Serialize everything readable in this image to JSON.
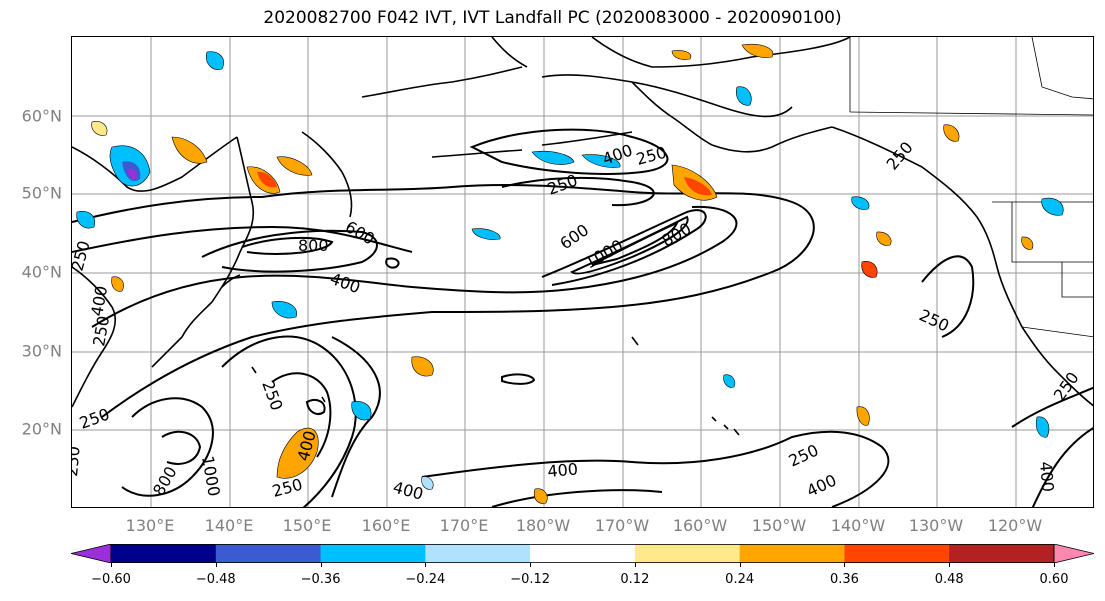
{
  "title": "2020082700 F042 IVT, IVT Landfall PC (2020083000 - 2020090100)",
  "lat_labels": [
    "60°N",
    "50°N",
    "40°N",
    "30°N",
    "20°N"
  ],
  "lon_labels": [
    "130°E",
    "140°E",
    "150°E",
    "160°E",
    "170°E",
    "180°W",
    "170°W",
    "160°W",
    "150°W",
    "140°W",
    "130°W",
    "120°W"
  ],
  "contour_labels": [
    {
      "text": "400"
    },
    {
      "text": "250"
    },
    {
      "text": "250"
    },
    {
      "text": "600"
    },
    {
      "text": "800"
    },
    {
      "text": "600"
    },
    {
      "text": "1000"
    },
    {
      "text": "800"
    },
    {
      "text": "400"
    },
    {
      "text": "250"
    },
    {
      "text": "250"
    },
    {
      "text": "250"
    },
    {
      "text": "400"
    },
    {
      "text": "250"
    },
    {
      "text": "250"
    },
    {
      "text": "250"
    },
    {
      "text": "400"
    },
    {
      "text": "800"
    },
    {
      "text": "1000"
    },
    {
      "text": "250"
    },
    {
      "text": "400"
    },
    {
      "text": "400"
    },
    {
      "text": "250"
    },
    {
      "text": "400"
    },
    {
      "text": "250"
    },
    {
      "text": "400"
    },
    {
      "text": "250"
    }
  ],
  "colorbar": {
    "ticks": [
      "−0.60",
      "−0.48",
      "−0.36",
      "−0.24",
      "−0.12",
      "0.12",
      "0.24",
      "0.36",
      "0.48",
      "0.60"
    ],
    "colors": [
      "#9b30d9",
      "#00008b",
      "#3a5cd0",
      "#00bfff",
      "#b0e2ff",
      "#ffffff",
      "#ffe98a",
      "#ffa500",
      "#ff4500",
      "#b22222",
      "#ff88b0"
    ]
  },
  "map": {
    "lat_range": [
      10,
      70
    ],
    "lon_range_deg_east": [
      120,
      250
    ],
    "contour_levels": [
      250,
      400,
      600,
      800,
      1000
    ],
    "grid": true
  }
}
